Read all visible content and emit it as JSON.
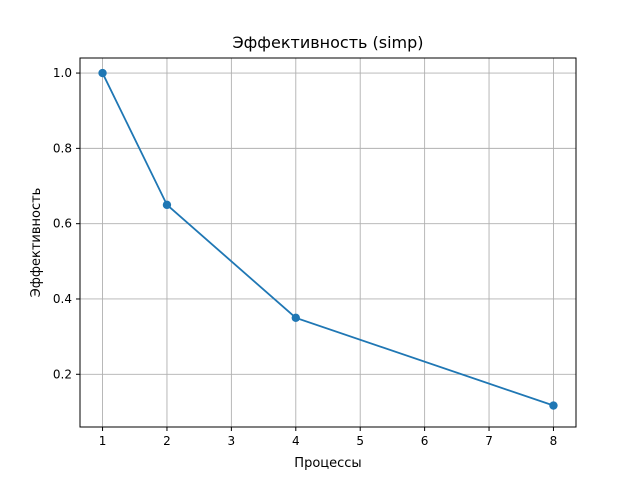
{
  "chart_data": {
    "type": "line",
    "title": "Эффективность (simp)",
    "xlabel": "Процессы",
    "ylabel": "Эффективность",
    "xlim": [
      0.65,
      8.35
    ],
    "ylim": [
      0.06,
      1.04
    ],
    "xticks": [
      1,
      2,
      3,
      4,
      5,
      6,
      7,
      8
    ],
    "yticks": [
      0.2,
      0.4,
      0.6,
      0.8,
      1.0
    ],
    "ytick_labels": [
      "0.2",
      "0.4",
      "0.6",
      "0.8",
      "1.0"
    ],
    "grid": true,
    "series": [
      {
        "color": "#1f77b4",
        "marker": "circle",
        "x": [
          1,
          2,
          4,
          8
        ],
        "y": [
          1.0,
          0.65,
          0.35,
          0.117
        ]
      }
    ]
  }
}
